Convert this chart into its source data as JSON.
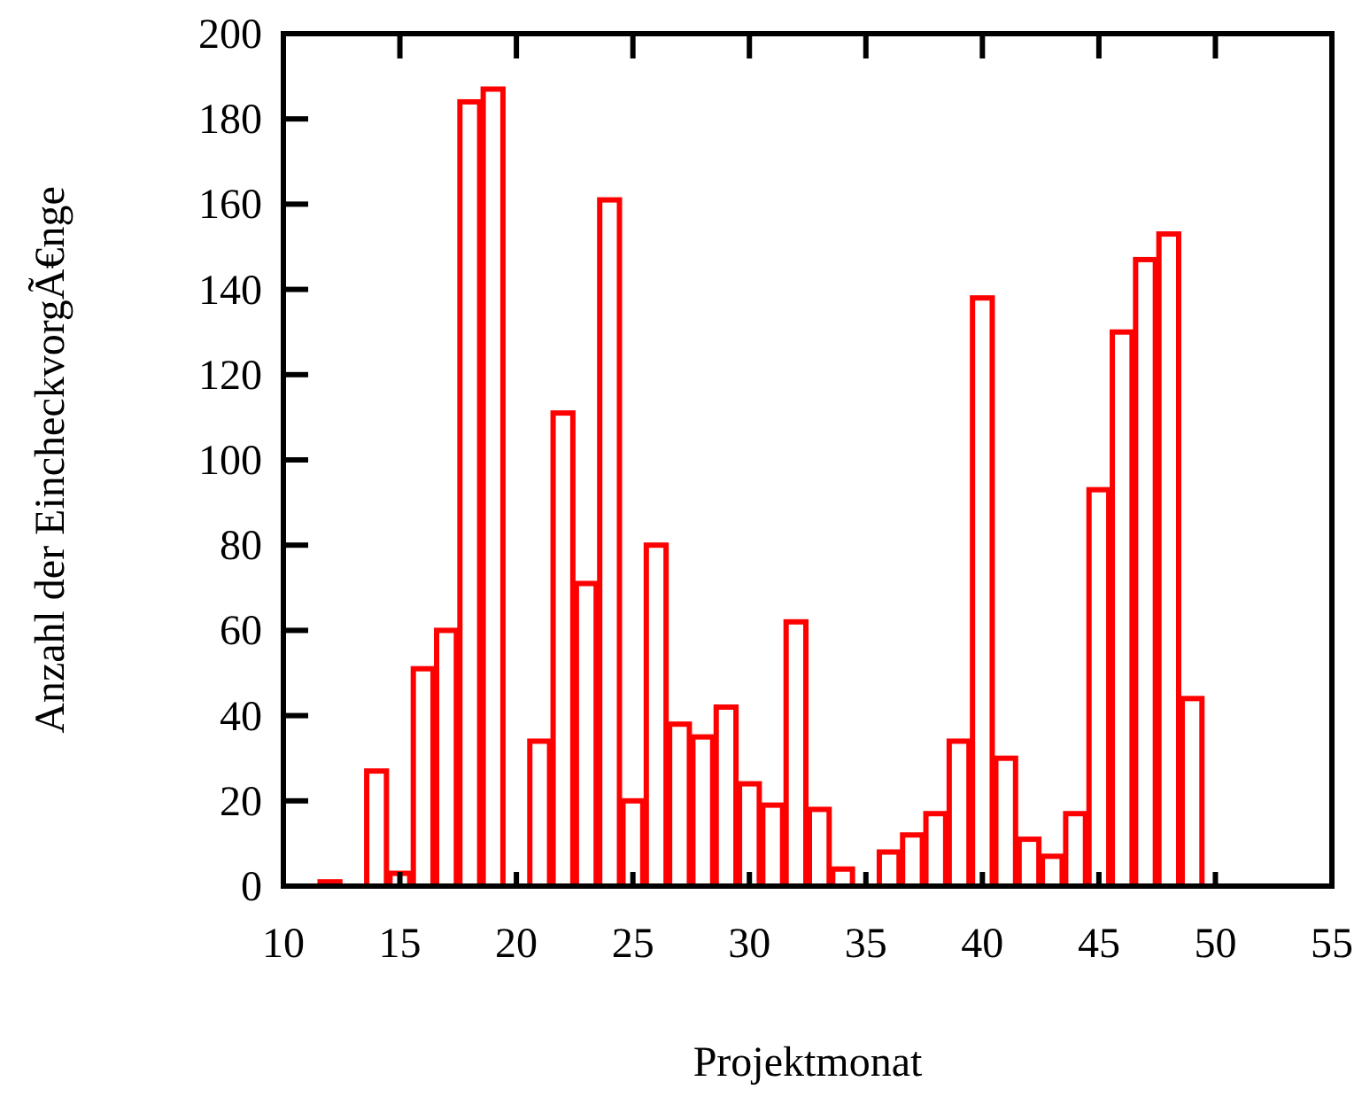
{
  "chart_data": {
    "type": "bar",
    "xlabel": "Projektmonat",
    "ylabel": "Anzahl der EincheckvorgÃ€nge",
    "x": [
      12,
      14,
      15,
      16,
      17,
      18,
      19,
      21,
      22,
      23,
      24,
      25,
      26,
      27,
      28,
      29,
      30,
      31,
      32,
      33,
      34,
      36,
      37,
      38,
      39,
      40,
      41,
      42,
      43,
      44,
      45,
      46,
      47,
      48,
      49,
      50,
      51,
      52
    ],
    "values": [
      1,
      27,
      3,
      51,
      60,
      184,
      187,
      34,
      111,
      71,
      161,
      20,
      80,
      38,
      35,
      42,
      24,
      19,
      62,
      18,
      4,
      8,
      12,
      17,
      34,
      138,
      30,
      11,
      7,
      17,
      93,
      130,
      147,
      153,
      44,
      0,
      0,
      0
    ],
    "color": "#ff0000",
    "xlim": [
      10,
      55
    ],
    "xticks": [
      10,
      15,
      20,
      25,
      30,
      35,
      40,
      45,
      50,
      55
    ],
    "ylim": [
      0,
      200
    ],
    "yticks": [
      0,
      20,
      40,
      60,
      80,
      100,
      120,
      140,
      160,
      180,
      200
    ],
    "grid": false
  }
}
